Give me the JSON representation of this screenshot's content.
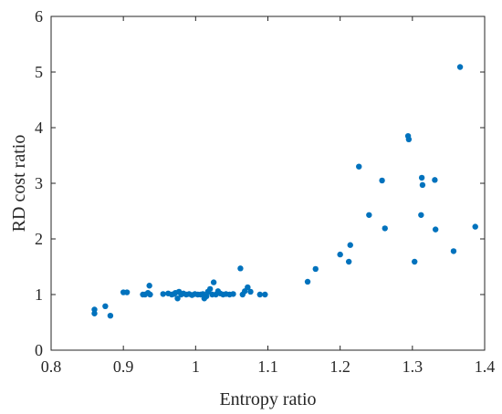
{
  "chart_data": {
    "type": "scatter",
    "xlabel": "Entropy ratio",
    "ylabel": "RD cost ratio",
    "xlim": [
      0.8,
      1.4
    ],
    "ylim": [
      0,
      6
    ],
    "xticks": [
      "0.8",
      "0.9",
      "1",
      "1.1",
      "1.2",
      "1.3",
      "1.4"
    ],
    "yticks": [
      "0",
      "1",
      "2",
      "3",
      "4",
      "5",
      "6"
    ],
    "grid": false,
    "marker_color": "#0072BD",
    "series": [
      {
        "points": [
          [
            0.86,
            0.73
          ],
          [
            0.86,
            0.66
          ],
          [
            0.875,
            0.79
          ],
          [
            0.882,
            0.62
          ],
          [
            0.9,
            1.04
          ],
          [
            0.905,
            1.04
          ],
          [
            0.927,
            1.0
          ],
          [
            0.93,
            1.0
          ],
          [
            0.934,
            1.03
          ],
          [
            0.936,
            1.16
          ],
          [
            0.937,
            1.0
          ],
          [
            0.955,
            1.01
          ],
          [
            0.962,
            1.02
          ],
          [
            0.967,
            1.0
          ],
          [
            0.97,
            1.01
          ],
          [
            0.972,
            1.03
          ],
          [
            0.975,
            0.93
          ],
          [
            0.977,
            1.05
          ],
          [
            0.98,
            1.0
          ],
          [
            0.983,
            1.02
          ],
          [
            0.987,
            1.0
          ],
          [
            0.991,
            1.01
          ],
          [
            0.995,
            0.99
          ],
          [
            0.999,
            1.01
          ],
          [
            1.003,
            1.0
          ],
          [
            1.007,
            1.0
          ],
          [
            1.01,
            1.01
          ],
          [
            1.012,
            0.93
          ],
          [
            1.015,
            0.97
          ],
          [
            1.017,
            1.05
          ],
          [
            1.02,
            1.1
          ],
          [
            1.023,
            1.0
          ],
          [
            1.025,
            1.22
          ],
          [
            1.028,
            1.0
          ],
          [
            1.031,
            1.06
          ],
          [
            1.034,
            1.02
          ],
          [
            1.038,
            1.0
          ],
          [
            1.042,
            1.01
          ],
          [
            1.047,
            1.0
          ],
          [
            1.052,
            1.01
          ],
          [
            1.062,
            1.47
          ],
          [
            1.065,
            1.0
          ],
          [
            1.068,
            1.06
          ],
          [
            1.072,
            1.13
          ],
          [
            1.076,
            1.05
          ],
          [
            1.089,
            1.0
          ],
          [
            1.096,
            1.0
          ],
          [
            1.155,
            1.23
          ],
          [
            1.166,
            1.46
          ],
          [
            1.2,
            1.72
          ],
          [
            1.212,
            1.59
          ],
          [
            1.214,
            1.89
          ],
          [
            1.226,
            3.3
          ],
          [
            1.24,
            2.43
          ],
          [
            1.258,
            3.05
          ],
          [
            1.262,
            2.19
          ],
          [
            1.294,
            3.85
          ],
          [
            1.295,
            3.79
          ],
          [
            1.303,
            1.59
          ],
          [
            1.312,
            2.43
          ],
          [
            1.313,
            3.1
          ],
          [
            1.314,
            2.97
          ],
          [
            1.331,
            3.06
          ],
          [
            1.332,
            2.17
          ],
          [
            1.357,
            1.78
          ],
          [
            1.366,
            5.09
          ],
          [
            1.387,
            2.22
          ]
        ]
      }
    ]
  }
}
